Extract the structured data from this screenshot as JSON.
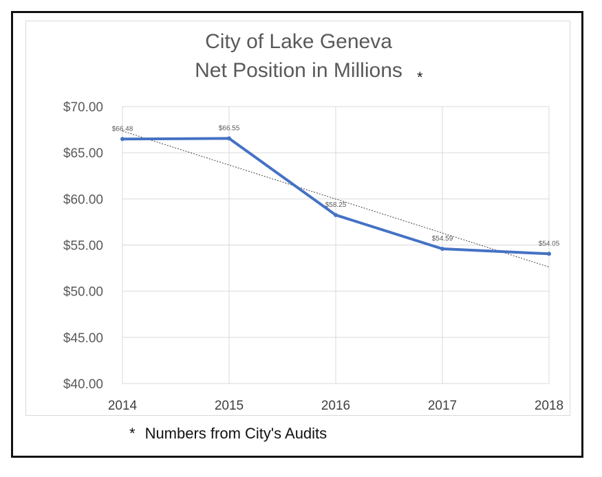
{
  "chart_data": {
    "type": "line",
    "title_line1": "City of Lake Geneva",
    "title_line2": "Net Position in Millions",
    "title_marker": "*",
    "x": [
      "2014",
      "2015",
      "2016",
      "2017",
      "2018"
    ],
    "series": [
      {
        "values": [
          66.48,
          66.55,
          58.25,
          54.59,
          54.05
        ],
        "labels": [
          "$66.48",
          "$66.55",
          "$58.25",
          "$54.59",
          "$54.05"
        ],
        "color": "#4472c4",
        "trendline": "linear"
      }
    ],
    "yticks": [
      "$40.00",
      "$45.00",
      "$50.00",
      "$55.00",
      "$60.00",
      "$65.00",
      "$70.00"
    ],
    "ylim": [
      40,
      70
    ],
    "grid": true,
    "legend": "none"
  },
  "footnote": {
    "marker": "*",
    "text": "Numbers from City's Audits"
  }
}
